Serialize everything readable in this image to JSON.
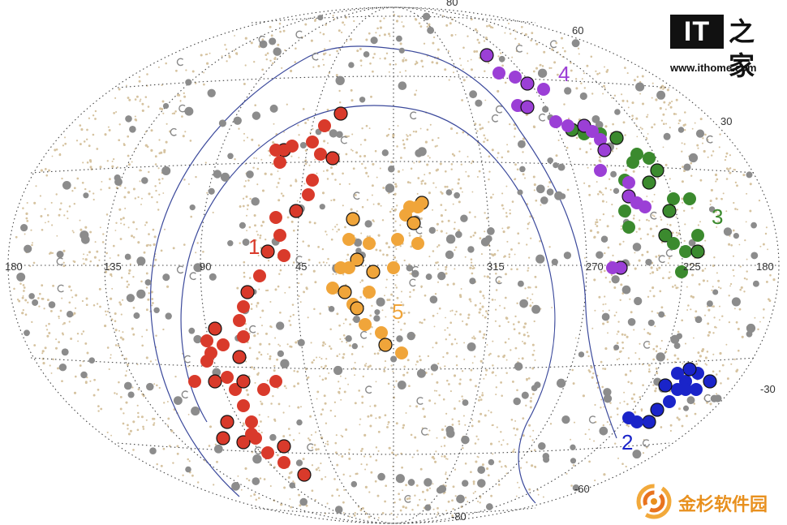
{
  "chart_data": {
    "type": "scatter",
    "title": "",
    "projection": "aitoff-hammer",
    "longitude_ticks": [
      "180",
      "135",
      "90",
      "45",
      "315",
      "270",
      "225",
      "180"
    ],
    "latitude_ticks": [
      "80",
      "60",
      "30",
      "-30",
      "-60",
      "-80"
    ],
    "groups": [
      {
        "label": "1",
        "color": "#d93a2b"
      },
      {
        "label": "2",
        "color": "#1a24c9"
      },
      {
        "label": "3",
        "color": "#3b8a2e"
      },
      {
        "label": "4",
        "color": "#9b3fd6"
      },
      {
        "label": "5",
        "color": "#f0a53a"
      }
    ],
    "background_colors": {
      "dots": "#d6c3a0",
      "grey": "#8c8c8c",
      "grid": "#444444",
      "galactic_line": "#3c4a9c"
    }
  },
  "logo": {
    "box_text": "IT",
    "cn_text": "之家",
    "url": "www.ithome.com"
  },
  "watermark": {
    "text": "金杉软件园"
  }
}
